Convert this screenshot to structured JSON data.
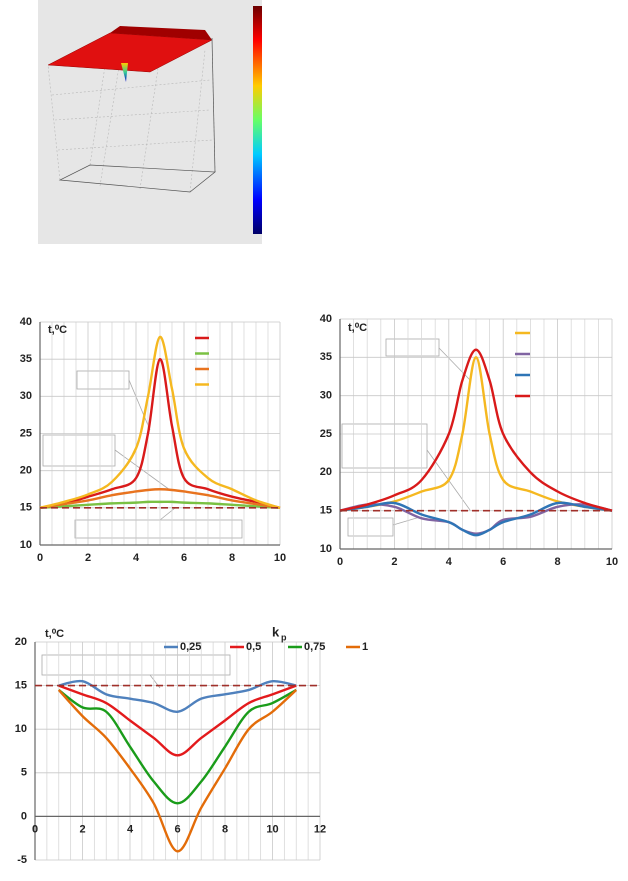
{
  "chart_data": [
    {
      "type": "line",
      "y_label": "t,⁰C",
      "x": [
        0,
        1,
        2,
        3,
        4,
        4.5,
        5,
        5.5,
        6,
        7,
        8,
        9,
        10
      ],
      "series": [
        {
          "color": "#d91a1a",
          "values": [
            15,
            15.5,
            16.5,
            17.5,
            19,
            25,
            35,
            26,
            19,
            17.5,
            16.5,
            15.8,
            15
          ]
        },
        {
          "color": "#7ac143",
          "values": [
            15,
            15.2,
            15.4,
            15.6,
            15.7,
            15.8,
            15.8,
            15.8,
            15.7,
            15.6,
            15.4,
            15.2,
            15
          ]
        },
        {
          "color": "#e8731f",
          "values": [
            15,
            15.5,
            16,
            16.7,
            17.2,
            17.4,
            17.5,
            17.4,
            17.2,
            16.7,
            16,
            15.5,
            15
          ]
        },
        {
          "color": "#f5b820",
          "values": [
            15,
            15.8,
            16.8,
            18.5,
            23,
            30,
            38,
            31,
            23,
            19,
            17.5,
            16,
            15
          ]
        },
        {
          "color": "#a0302a",
          "dashed": true,
          "x": [
            0,
            10
          ],
          "values": [
            15,
            15
          ]
        }
      ],
      "xlim": [
        0,
        10
      ],
      "xticks": [
        0,
        2,
        4,
        6,
        8,
        10
      ],
      "ylim": [
        10,
        40
      ],
      "yticks": [
        10,
        15,
        20,
        25,
        30,
        35,
        40
      ],
      "grid": true
    },
    {
      "type": "line",
      "y_label": "t,⁰C",
      "x": [
        0,
        1,
        2,
        3,
        4,
        4.5,
        5,
        5.5,
        6,
        7,
        8,
        9,
        10
      ],
      "series": [
        {
          "color": "#f5b820",
          "values": [
            15,
            15.5,
            16.2,
            17.5,
            19,
            25,
            35,
            25,
            19,
            17.5,
            16.2,
            15.5,
            15
          ]
        },
        {
          "color": "#8064a2",
          "values": [
            15,
            15.8,
            15.5,
            14,
            13.5,
            12.5,
            12,
            12.5,
            13.8,
            14.2,
            15.5,
            15.8,
            15
          ]
        },
        {
          "color": "#2e75b6",
          "values": [
            15,
            15.5,
            16,
            14.5,
            13.5,
            12.5,
            11.8,
            12.5,
            13.5,
            14.5,
            16,
            15.5,
            15
          ]
        },
        {
          "color": "#d91a1a",
          "values": [
            15,
            15.8,
            17,
            19,
            25,
            32,
            36,
            32,
            25,
            20,
            17.5,
            16,
            15
          ]
        },
        {
          "color": "#a0302a",
          "dashed": true,
          "x": [
            0,
            10
          ],
          "values": [
            15,
            15
          ]
        }
      ],
      "xlim": [
        0,
        10
      ],
      "xticks": [
        0,
        2,
        4,
        6,
        8,
        10
      ],
      "ylim": [
        10,
        40
      ],
      "yticks": [
        10,
        15,
        20,
        25,
        30,
        35,
        40
      ],
      "grid": true
    },
    {
      "type": "line",
      "y_label": "t,⁰C",
      "legend_title": "k",
      "legend_title_subscript": "p",
      "x": [
        1,
        2,
        3,
        4,
        5,
        6,
        7,
        8,
        9,
        10,
        11
      ],
      "series": [
        {
          "name": "0,25",
          "color": "#4f81bd",
          "values": [
            15,
            15.5,
            14,
            13.5,
            13,
            12,
            13.5,
            14,
            14.5,
            15.5,
            15
          ]
        },
        {
          "name": "0,5",
          "color": "#e31a1c",
          "values": [
            15,
            14,
            13,
            11,
            9,
            7,
            9,
            11,
            13,
            14,
            15
          ]
        },
        {
          "name": "0,75",
          "color": "#1a9c1a",
          "values": [
            14.5,
            12.5,
            12,
            8,
            4,
            1.5,
            4,
            8,
            12,
            13,
            14.5
          ]
        },
        {
          "name": "1",
          "color": "#e36c09",
          "values": [
            14.5,
            11.5,
            9,
            5.5,
            1.5,
            -4,
            1,
            5.5,
            10,
            12,
            14.5
          ]
        },
        {
          "color": "#a0302a",
          "dashed": true,
          "x": [
            0,
            12
          ],
          "values": [
            15,
            15
          ]
        }
      ],
      "xlim": [
        0,
        12
      ],
      "xticks": [
        0,
        2,
        4,
        6,
        8,
        10,
        12
      ],
      "ylim": [
        -5,
        20
      ],
      "yticks": [
        -5,
        0,
        5,
        10,
        15,
        20
      ],
      "grid": true
    }
  ]
}
